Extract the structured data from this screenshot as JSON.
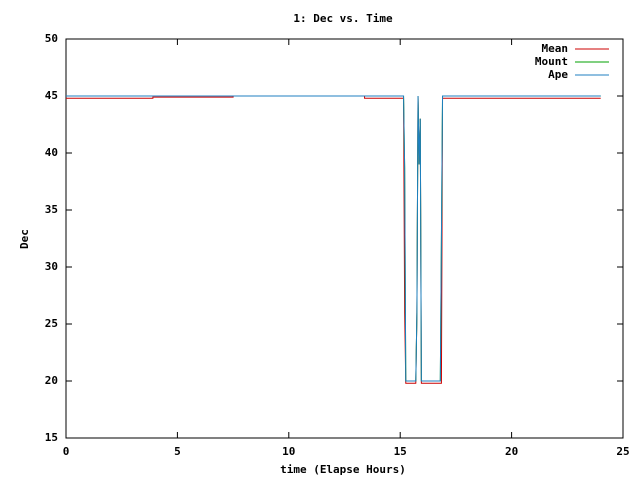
{
  "chart_data": {
    "type": "line",
    "title": "1: Dec vs. Time",
    "x_label": "time (Elapse Hours)",
    "y_label": "Dec",
    "xlim": [
      0,
      25
    ],
    "xticks": [
      0,
      5,
      10,
      15,
      20,
      25
    ],
    "ylim": [
      15,
      50
    ],
    "yticks": [
      15,
      20,
      25,
      30,
      35,
      40,
      45,
      50
    ],
    "legend": "top-right",
    "series": [
      {
        "name": "Mean",
        "color": "#cc0000",
        "x": [
          0,
          3.9,
          3.9,
          7.5,
          7.5,
          13.4,
          13.4,
          15.15,
          15.2,
          15.25,
          15.7,
          15.75,
          15.8,
          15.85,
          15.9,
          15.95,
          16.85,
          16.9,
          24
        ],
        "values": [
          44.8,
          44.8,
          44.9,
          44.9,
          45,
          45,
          44.8,
          44.8,
          26,
          19.8,
          19.8,
          26,
          45,
          39,
          43,
          19.8,
          19.8,
          44.8,
          44.8
        ]
      },
      {
        "name": "Mount",
        "color": "#00a000",
        "x": [
          0,
          15.15,
          15.2,
          15.25,
          15.7,
          15.75,
          15.8,
          15.85,
          15.9,
          15.95,
          16.8,
          16.85,
          16.9,
          24
        ],
        "values": [
          45,
          45,
          38.7,
          20,
          20,
          26,
          45,
          39,
          43,
          20,
          20,
          32.5,
          45,
          45
        ]
      },
      {
        "name": "Ape",
        "color": "#1f7fc0",
        "x": [
          0,
          15.15,
          15.2,
          15.25,
          15.7,
          15.75,
          15.8,
          15.85,
          15.9,
          15.95,
          16.8,
          16.85,
          16.9,
          24
        ],
        "values": [
          45,
          45,
          38.7,
          20,
          20,
          26,
          45,
          39,
          43,
          20,
          20,
          32.5,
          45,
          45
        ]
      }
    ]
  }
}
